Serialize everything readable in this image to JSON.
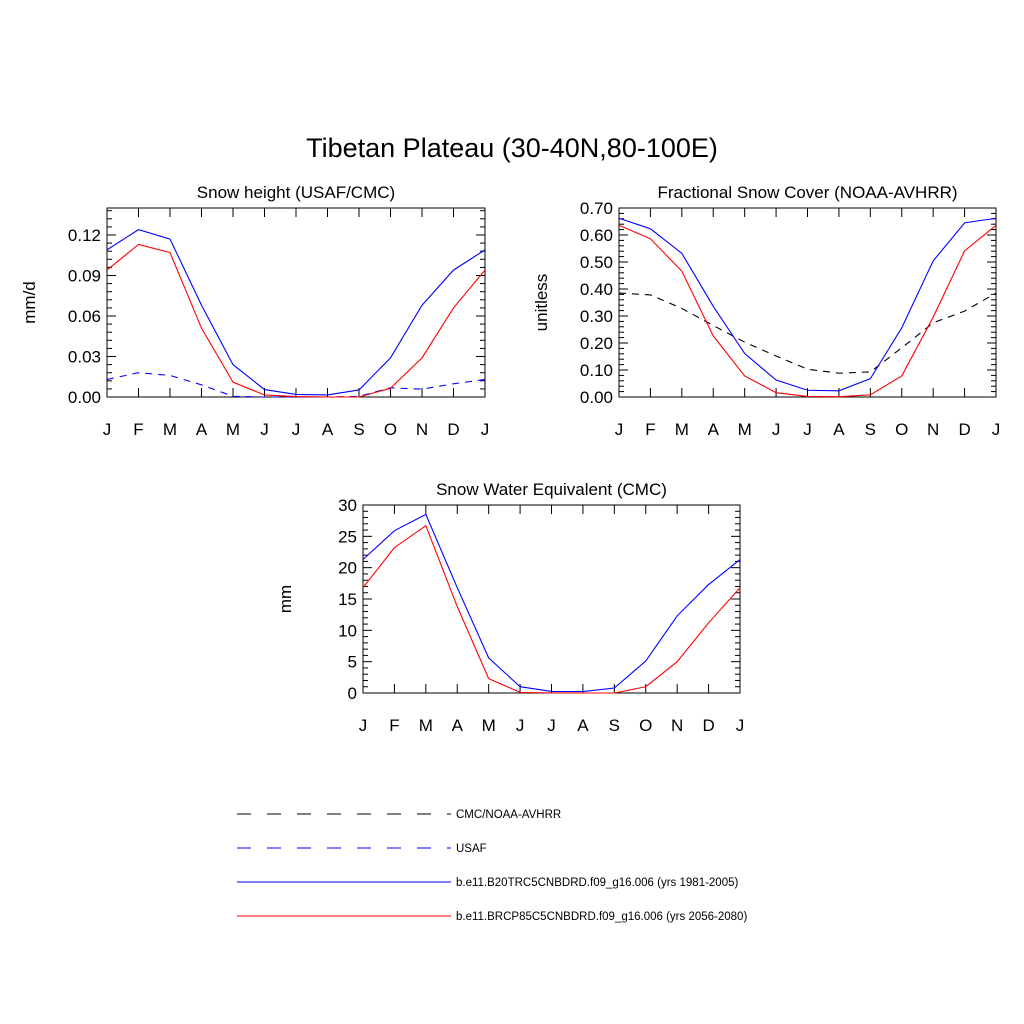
{
  "figure_title": "Tibetan Plateau (30-40N,80-100E)",
  "months": [
    "J",
    "F",
    "M",
    "A",
    "M",
    "J",
    "J",
    "A",
    "S",
    "O",
    "N",
    "D",
    "J"
  ],
  "colors": {
    "obs1": "#000000",
    "obs2": "#0000ff",
    "model_hist": "#0000ff",
    "model_future": "#ff0000"
  },
  "legend": {
    "items": [
      {
        "label": "CMC/NOAA-AVHRR",
        "color": "#000000",
        "dash": "dashed"
      },
      {
        "label": "USAF",
        "color": "#0000ff",
        "dash": "dashed"
      },
      {
        "label": "b.e11.B20TRC5CNBDRD.f09_g16.006 (yrs 1981-2005)",
        "color": "#0000ff",
        "dash": "solid"
      },
      {
        "label": "b.e11.BRCP85C5CNBDRD.f09_g16.006 (yrs 2056-2080)",
        "color": "#ff0000",
        "dash": "solid"
      }
    ]
  },
  "chart_data": [
    {
      "type": "line",
      "title": "Snow height (USAF/CMC)",
      "xlabel": "",
      "ylabel": "mm/d",
      "x": [
        "J",
        "F",
        "M",
        "A",
        "M",
        "J",
        "J",
        "A",
        "S",
        "O",
        "N",
        "D",
        "J"
      ],
      "ylim": [
        0,
        0.14
      ],
      "yticks": [
        0.0,
        0.03,
        0.06,
        0.09,
        0.12
      ],
      "ytick_labels": [
        "0.00",
        "0.03",
        "0.06",
        "0.09",
        "0.12"
      ],
      "series": [
        {
          "key": "obs1",
          "values": [
            0,
            0,
            0,
            0,
            0,
            0,
            0,
            0,
            0,
            0,
            0,
            0,
            0
          ],
          "color": "#000000",
          "dash": "dashed"
        },
        {
          "key": "obs2",
          "values": [
            0.013,
            0.018,
            0.016,
            0.009,
            0.0005,
            0,
            0,
            0,
            0.0005,
            0.0068,
            0.0058,
            0.0098,
            0.013
          ],
          "color": "#0000ff",
          "dash": "dashed"
        },
        {
          "key": "model_hist",
          "values": [
            0.109,
            0.124,
            0.117,
            0.068,
            0.024,
            0.0055,
            0.0019,
            0.0015,
            0.0052,
            0.029,
            0.068,
            0.094,
            0.109
          ],
          "color": "#0000ff",
          "dash": "solid"
        },
        {
          "key": "model_future",
          "values": [
            0.094,
            0.113,
            0.107,
            0.051,
            0.011,
            0.0015,
            0.0003,
            0,
            0,
            0.0065,
            0.029,
            0.066,
            0.094
          ],
          "color": "#ff0000",
          "dash": "solid"
        }
      ]
    },
    {
      "type": "line",
      "title": "Fractional Snow Cover (NOAA-AVHRR)",
      "xlabel": "",
      "ylabel": "unitless",
      "x": [
        "J",
        "F",
        "M",
        "A",
        "M",
        "J",
        "J",
        "A",
        "S",
        "O",
        "N",
        "D",
        "J"
      ],
      "ylim": [
        0,
        0.7
      ],
      "yticks": [
        0.0,
        0.1,
        0.2,
        0.3,
        0.4,
        0.5,
        0.6,
        0.7
      ],
      "ytick_labels": [
        "0.00",
        "0.10",
        "0.20",
        "0.30",
        "0.40",
        "0.50",
        "0.60",
        "0.70"
      ],
      "series": [
        {
          "key": "obs1",
          "values": [
            0.385,
            0.378,
            0.328,
            0.265,
            0.203,
            0.152,
            0.103,
            0.088,
            0.093,
            0.182,
            0.275,
            0.318,
            0.385
          ],
          "color": "#000000",
          "dash": "dashed"
        },
        {
          "key": "model_hist",
          "values": [
            0.662,
            0.623,
            0.532,
            0.336,
            0.161,
            0.063,
            0.025,
            0.023,
            0.068,
            0.256,
            0.504,
            0.645,
            0.662
          ],
          "color": "#0000ff",
          "dash": "solid"
        },
        {
          "key": "model_future",
          "values": [
            0.636,
            0.586,
            0.466,
            0.226,
            0.078,
            0.016,
            0.002,
            0.001,
            0.008,
            0.078,
            0.296,
            0.541,
            0.636
          ],
          "color": "#ff0000",
          "dash": "solid"
        }
      ]
    },
    {
      "type": "line",
      "title": "Snow Water Equivalent (CMC)",
      "xlabel": "",
      "ylabel": "mm",
      "x": [
        "J",
        "F",
        "M",
        "A",
        "M",
        "J",
        "J",
        "A",
        "S",
        "O",
        "N",
        "D",
        "J"
      ],
      "ylim": [
        0,
        30
      ],
      "yticks": [
        0,
        5,
        10,
        15,
        20,
        25,
        30
      ],
      "ytick_labels": [
        "0",
        "5",
        "10",
        "15",
        "20",
        "25",
        "30"
      ],
      "series": [
        {
          "key": "obs1",
          "values": [
            0,
            0,
            0,
            0,
            0,
            0,
            0,
            0,
            0,
            0,
            0,
            0,
            0
          ],
          "color": "#000000",
          "dash": "dashed"
        },
        {
          "key": "model_hist",
          "values": [
            21.3,
            25.9,
            28.5,
            16.8,
            5.6,
            1.0,
            0.25,
            0.23,
            0.8,
            5.1,
            12.3,
            17.3,
            21.3
          ],
          "color": "#0000ff",
          "dash": "solid"
        },
        {
          "key": "model_future",
          "values": [
            16.8,
            23.2,
            26.7,
            13.8,
            2.3,
            0.1,
            0.02,
            0.0,
            0.0,
            1.0,
            5.0,
            11.2,
            16.8
          ],
          "color": "#ff0000",
          "dash": "solid"
        }
      ]
    }
  ]
}
